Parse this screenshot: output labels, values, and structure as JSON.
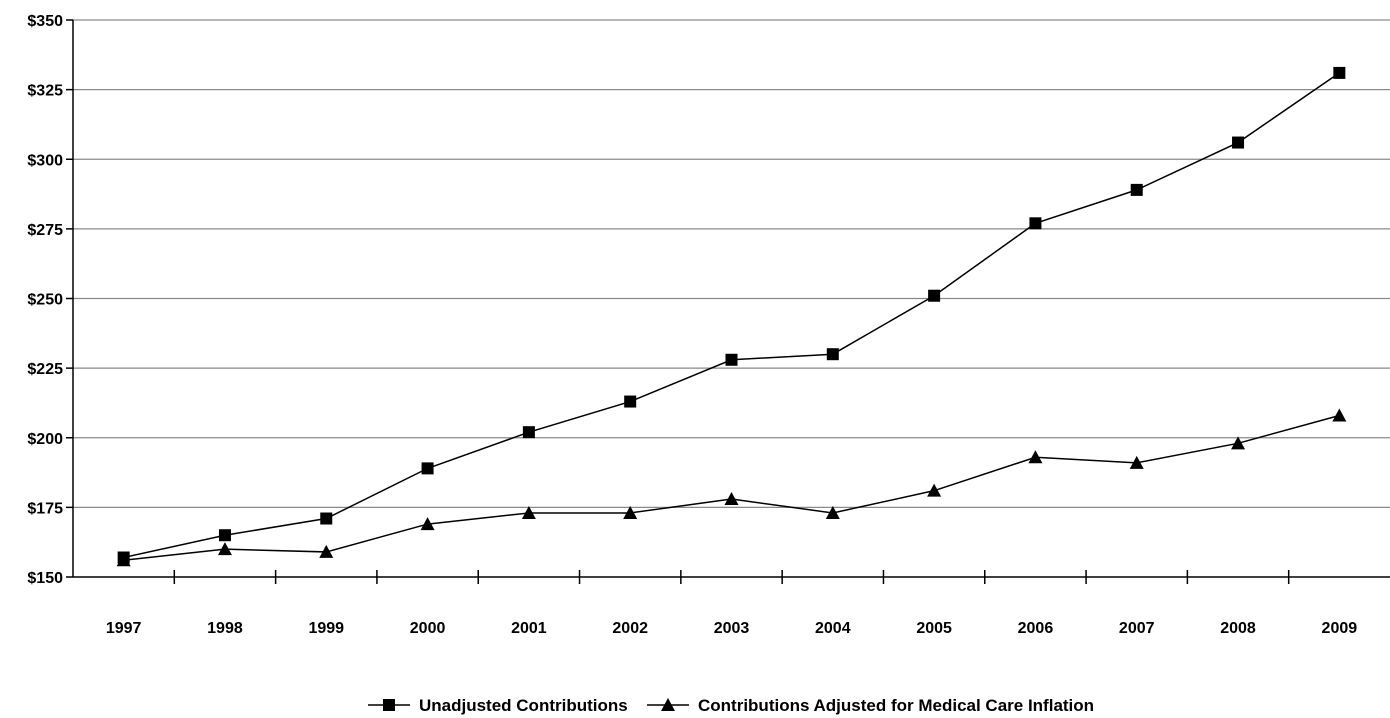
{
  "chart_data": {
    "type": "line",
    "title": "",
    "xlabel": "",
    "ylabel": "",
    "categories": [
      "1997",
      "1998",
      "1999",
      "2000",
      "2001",
      "2002",
      "2003",
      "2004",
      "2005",
      "2006",
      "2007",
      "2008",
      "2009"
    ],
    "ylim": [
      150,
      350
    ],
    "yticks": [
      150,
      175,
      200,
      225,
      250,
      275,
      300,
      325,
      350
    ],
    "ytick_labels": [
      "$150",
      "$175",
      "$200",
      "$225",
      "$250",
      "$275",
      "$300",
      "$325",
      "$350"
    ],
    "grid": true,
    "legend_position": "bottom",
    "series": [
      {
        "name": "Unadjusted Contributions",
        "marker": "square",
        "values": [
          157,
          165,
          171,
          189,
          202,
          213,
          228,
          230,
          251,
          277,
          289,
          306,
          331
        ]
      },
      {
        "name": "Contributions Adjusted for Medical Care Inflation",
        "marker": "triangle",
        "values": [
          156,
          160,
          159,
          169,
          173,
          173,
          178,
          173,
          181,
          193,
          191,
          198,
          208
        ]
      }
    ]
  }
}
